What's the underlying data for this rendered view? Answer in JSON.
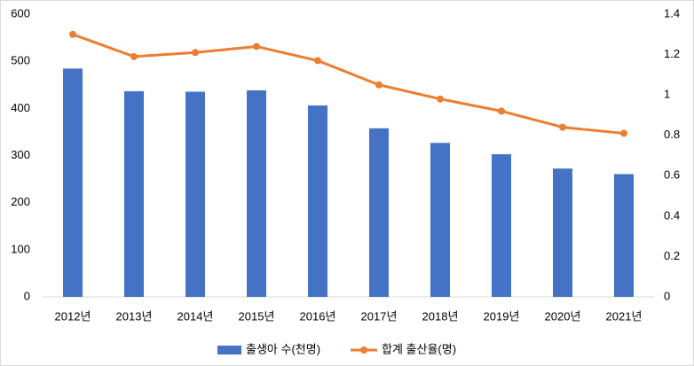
{
  "chart_data": {
    "type": "bar",
    "categories": [
      "2012년",
      "2013년",
      "2014년",
      "2015년",
      "2016년",
      "2017년",
      "2018년",
      "2019년",
      "2020년",
      "2021년"
    ],
    "series": [
      {
        "name": "출생아 수(천명)",
        "type": "bar",
        "color": "#4472c4",
        "values": [
          484.6,
          436.5,
          435.4,
          438.4,
          406.2,
          357.8,
          326.8,
          302.7,
          272.3,
          260.6
        ]
      },
      {
        "name": "합계 출산율(명)",
        "type": "line",
        "axis": "y2",
        "color": "#ed7d31",
        "values": [
          1.3,
          1.19,
          1.21,
          1.24,
          1.17,
          1.05,
          0.98,
          0.92,
          0.84,
          0.81
        ]
      }
    ],
    "ylim": [
      0,
      600
    ],
    "yticks": [
      0,
      100,
      200,
      300,
      400,
      500,
      600
    ],
    "y2lim": [
      0,
      1.4
    ],
    "y2ticks": [
      0,
      0.2,
      0.4,
      0.6,
      0.8,
      1,
      1.2,
      1.4
    ],
    "grid": false,
    "legend": "bottom"
  }
}
